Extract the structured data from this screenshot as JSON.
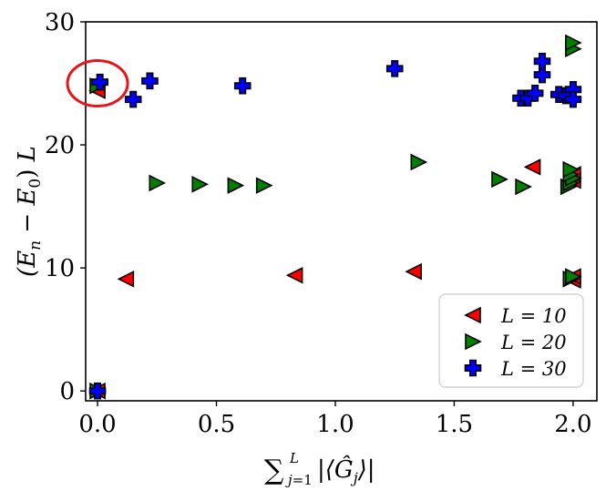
{
  "chart_data": {
    "type": "scatter",
    "title": "",
    "xlabel": "∑_{j=1}^{L} |⟨Ĝ_j⟩|",
    "ylabel": "(E_n − E_0) L",
    "xlim": [
      -0.05,
      2.1
    ],
    "ylim": [
      -0.8,
      30
    ],
    "xticks": [
      0.0,
      0.5,
      1.0,
      1.5,
      2.0
    ],
    "xtick_labels": [
      "0.0",
      "0.5",
      "1.0",
      "1.5",
      "2.0"
    ],
    "yticks": [
      0,
      10,
      20,
      30
    ],
    "ytick_labels": [
      "0",
      "10",
      "20",
      "30"
    ],
    "grid": false,
    "legend_position": "lower-right",
    "annotation": {
      "shape": "ellipse",
      "color": "#e8141a",
      "x": 0.0,
      "y": 25.0
    },
    "series": [
      {
        "name": "L = 10",
        "marker": "triangle-left",
        "color": "#ff0000",
        "points": [
          [
            0.0,
            0.0
          ],
          [
            0.0,
            24.4
          ],
          [
            0.12,
            9.1
          ],
          [
            0.83,
            9.4
          ],
          [
            1.33,
            9.7
          ],
          [
            1.83,
            18.2
          ],
          [
            2.0,
            9.0
          ],
          [
            2.0,
            9.3
          ],
          [
            2.0,
            17.1
          ],
          [
            2.0,
            17.6
          ]
        ]
      },
      {
        "name": "L = 20",
        "marker": "triangle-right",
        "color": "#008000",
        "points": [
          [
            0.0,
            0.0
          ],
          [
            0.0,
            24.8
          ],
          [
            0.25,
            16.9
          ],
          [
            0.43,
            16.8
          ],
          [
            0.58,
            16.7
          ],
          [
            0.7,
            16.7
          ],
          [
            1.35,
            18.6
          ],
          [
            1.69,
            17.2
          ],
          [
            1.79,
            16.6
          ],
          [
            1.98,
            16.6
          ],
          [
            1.99,
            16.9
          ],
          [
            2.0,
            17.3
          ],
          [
            1.99,
            17.6
          ],
          [
            1.99,
            18.0
          ],
          [
            2.0,
            27.8
          ],
          [
            2.0,
            28.3
          ],
          [
            1.99,
            9.1
          ],
          [
            2.0,
            9.3
          ]
        ]
      },
      {
        "name": "L = 30",
        "marker": "plus",
        "color": "#0000ff",
        "points": [
          [
            0.0,
            0.0
          ],
          [
            0.01,
            25.1
          ],
          [
            0.15,
            23.7
          ],
          [
            0.22,
            25.2
          ],
          [
            0.61,
            24.8
          ],
          [
            1.25,
            26.2
          ],
          [
            1.78,
            23.8
          ],
          [
            1.81,
            23.8
          ],
          [
            1.84,
            24.2
          ],
          [
            1.87,
            25.7
          ],
          [
            1.87,
            26.8
          ],
          [
            1.94,
            24.1
          ],
          [
            1.97,
            24.0
          ],
          [
            2.0,
            24.5
          ],
          [
            2.0,
            23.7
          ]
        ]
      }
    ]
  }
}
